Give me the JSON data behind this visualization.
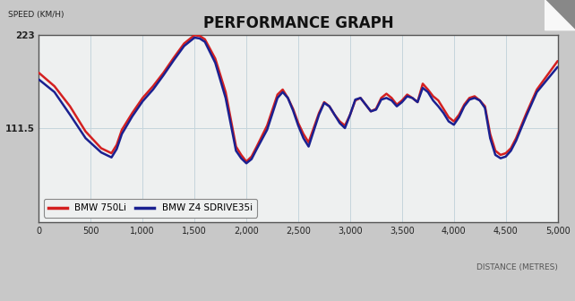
{
  "title": "PERFORMANCE GRAPH",
  "ylabel": "SPEED (KM/H)",
  "xlabel": "DISTANCE (METRES)",
  "ylim": [
    0,
    223
  ],
  "xlim": [
    0,
    5000
  ],
  "yticks": [
    111.5,
    223
  ],
  "xticks": [
    0,
    500,
    1000,
    1500,
    2000,
    2500,
    3000,
    3500,
    4000,
    4500,
    5000
  ],
  "xtick_labels": [
    "0",
    "500",
    "1,000",
    "1,500",
    "2,000",
    "2,500",
    "3,000",
    "3,500",
    "4,000",
    "4,500",
    "5,000"
  ],
  "bg_color": "#eef0f0",
  "fig_color": "#c8c8c8",
  "grid_color": "#c5d5dc",
  "line_color_750": "#d42020",
  "line_color_z4": "#1a2090",
  "legend_750": "BMW 750Li",
  "legend_z4": "BMW Z4 SDRIVE35i",
  "x": [
    0,
    150,
    300,
    450,
    600,
    700,
    750,
    800,
    900,
    1000,
    1100,
    1200,
    1300,
    1400,
    1500,
    1550,
    1600,
    1700,
    1800,
    1900,
    1950,
    2000,
    2050,
    2100,
    2200,
    2300,
    2350,
    2400,
    2450,
    2500,
    2550,
    2600,
    2700,
    2750,
    2800,
    2850,
    2900,
    2950,
    3000,
    3050,
    3100,
    3150,
    3200,
    3250,
    3300,
    3350,
    3400,
    3450,
    3500,
    3550,
    3600,
    3650,
    3700,
    3750,
    3800,
    3850,
    3900,
    3950,
    4000,
    4050,
    4100,
    4150,
    4200,
    4250,
    4300,
    4350,
    4400,
    4450,
    4500,
    4550,
    4600,
    4700,
    4800,
    4900,
    5000
  ],
  "y_750": [
    178,
    162,
    138,
    108,
    88,
    82,
    92,
    110,
    130,
    148,
    162,
    178,
    196,
    213,
    223,
    222,
    218,
    195,
    155,
    90,
    80,
    72,
    78,
    90,
    115,
    152,
    158,
    148,
    135,
    118,
    105,
    95,
    130,
    143,
    138,
    128,
    120,
    115,
    128,
    145,
    148,
    140,
    132,
    135,
    148,
    153,
    148,
    140,
    145,
    152,
    148,
    143,
    165,
    158,
    150,
    145,
    135,
    125,
    120,
    128,
    140,
    148,
    150,
    145,
    138,
    105,
    85,
    80,
    82,
    88,
    100,
    130,
    158,
    175,
    192
  ],
  "y_z4": [
    170,
    155,
    128,
    100,
    83,
    77,
    87,
    105,
    126,
    144,
    158,
    175,
    193,
    210,
    220,
    219,
    215,
    190,
    148,
    85,
    76,
    70,
    75,
    87,
    110,
    148,
    155,
    148,
    133,
    115,
    100,
    90,
    128,
    142,
    138,
    128,
    118,
    112,
    128,
    146,
    148,
    140,
    132,
    134,
    146,
    148,
    145,
    138,
    143,
    150,
    148,
    143,
    160,
    155,
    145,
    138,
    130,
    120,
    116,
    125,
    138,
    146,
    148,
    145,
    136,
    100,
    80,
    76,
    78,
    85,
    97,
    127,
    155,
    170,
    185
  ]
}
